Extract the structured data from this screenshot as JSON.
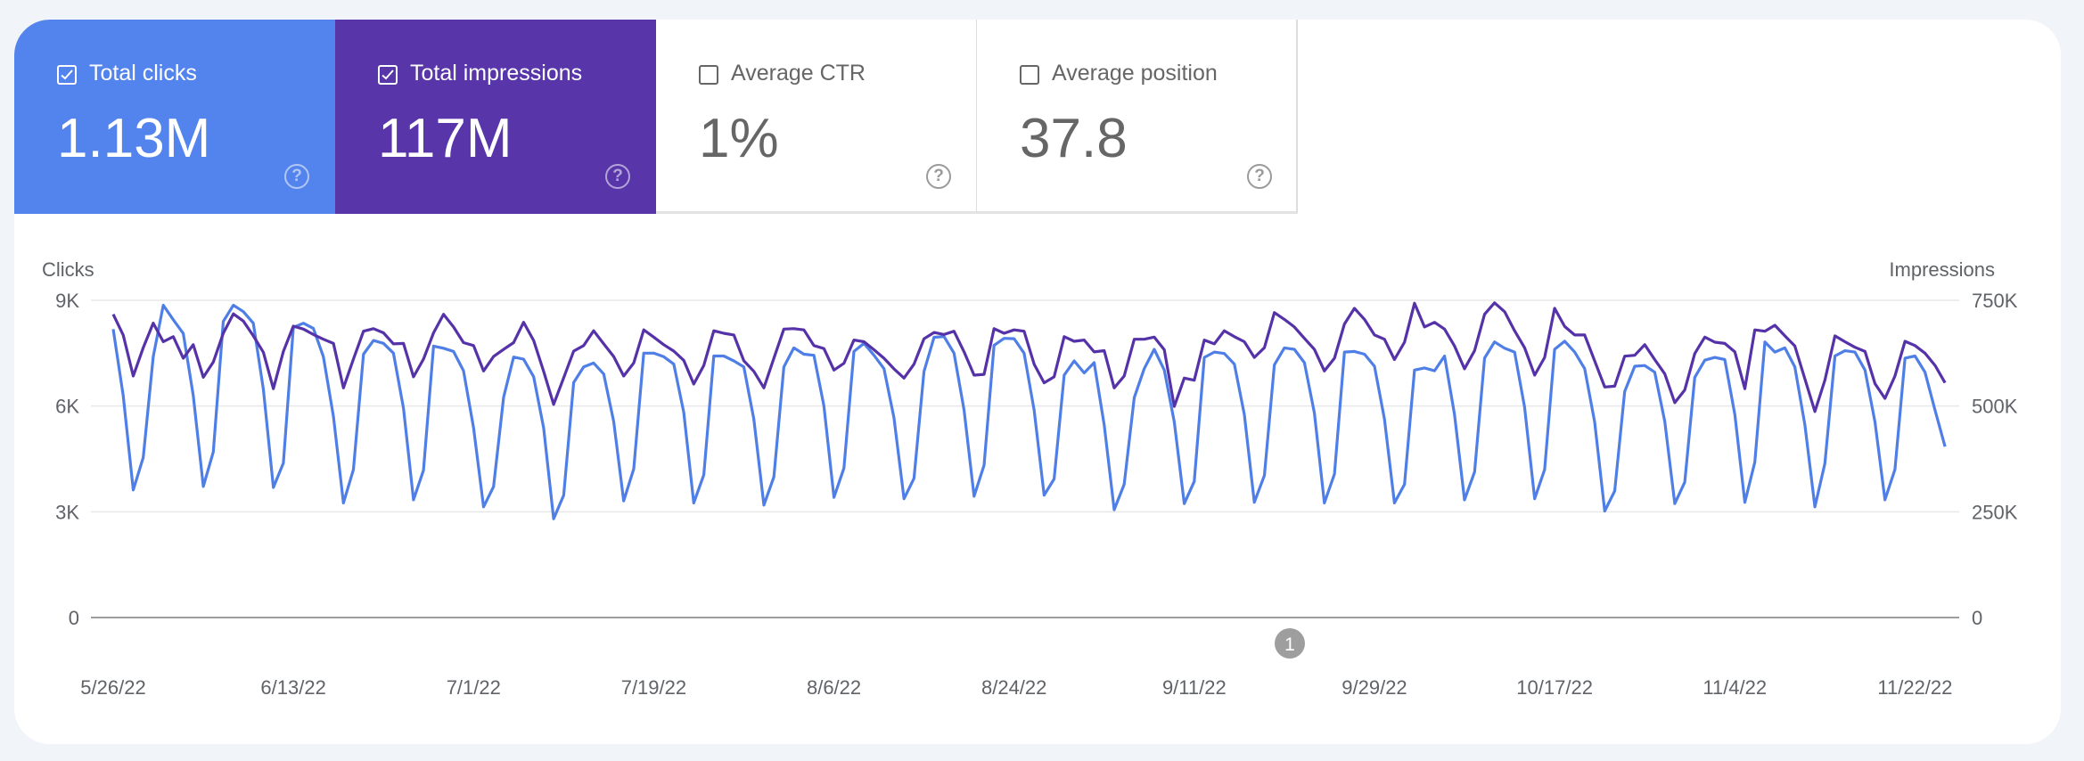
{
  "metrics": [
    {
      "label": "Total clicks",
      "value": "1.13M",
      "checked": true,
      "color": "#5383ec"
    },
    {
      "label": "Total impressions",
      "value": "117M",
      "checked": true,
      "color": "#5835a9"
    },
    {
      "label": "Average CTR",
      "value": "1%",
      "checked": false
    },
    {
      "label": "Average position",
      "value": "37.8",
      "checked": false
    }
  ],
  "annotation_badge": "1",
  "chart_data": {
    "type": "line",
    "x_range": [
      "5/26/22",
      "11/25/22"
    ],
    "x_tick_labels": [
      "5/26/22",
      "6/13/22",
      "7/1/22",
      "7/19/22",
      "8/6/22",
      "8/24/22",
      "9/11/22",
      "9/29/22",
      "10/17/22",
      "11/4/22",
      "11/22/22"
    ],
    "left_axis": {
      "label": "Clicks",
      "ylim": [
        0,
        9000
      ],
      "tick_labels": [
        "0",
        "3K",
        "6K",
        "9K"
      ]
    },
    "right_axis": {
      "label": "Impressions",
      "ylim": [
        0,
        750000
      ],
      "tick_labels": [
        "0",
        "250K",
        "500K",
        "750K"
      ]
    },
    "grid": true,
    "series": [
      {
        "name": "Clicks",
        "axis": "left",
        "color": "#4f7fe6",
        "values": [
          8180,
          6300,
          3620,
          4540,
          7400,
          8860,
          8450,
          8060,
          6300,
          3720,
          4700,
          8400,
          8860,
          8680,
          8350,
          6470,
          3690,
          4380,
          8230,
          8350,
          8200,
          7400,
          5700,
          3250,
          4200,
          7470,
          7860,
          7780,
          7500,
          5930,
          3340,
          4180,
          7700,
          7640,
          7550,
          7000,
          5380,
          3140,
          3710,
          6250,
          7390,
          7330,
          6830,
          5380,
          2800,
          3470,
          6670,
          7110,
          7220,
          6910,
          5560,
          3310,
          4220,
          7500,
          7500,
          7400,
          7190,
          5820,
          3250,
          4050,
          7420,
          7420,
          7280,
          7110,
          5630,
          3190,
          3990,
          7110,
          7650,
          7470,
          7440,
          6010,
          3410,
          4240,
          7550,
          7780,
          7440,
          7060,
          5670,
          3370,
          3950,
          6980,
          7950,
          7970,
          7500,
          5880,
          3440,
          4320,
          7720,
          7920,
          7910,
          7500,
          5880,
          3470,
          3930,
          6880,
          7280,
          6940,
          7230,
          5460,
          3060,
          3780,
          6240,
          7060,
          7610,
          7020,
          5550,
          3230,
          3860,
          7380,
          7530,
          7490,
          7190,
          5760,
          3270,
          4030,
          7170,
          7650,
          7610,
          7230,
          5800,
          3250,
          4070,
          7530,
          7550,
          7470,
          7130,
          5630,
          3250,
          3780,
          7020,
          7080,
          7000,
          7420,
          5760,
          3340,
          4130,
          7360,
          7820,
          7640,
          7530,
          5970,
          3370,
          4200,
          7610,
          7840,
          7530,
          7060,
          5550,
          3020,
          3590,
          6410,
          7130,
          7150,
          6960,
          5560,
          3230,
          3840,
          6810,
          7300,
          7380,
          7320,
          5760,
          3270,
          4410,
          7820,
          7530,
          7650,
          7110,
          5460,
          3140,
          4370,
          7420,
          7570,
          7530,
          7020,
          5550,
          3340,
          4200,
          7360,
          7420,
          6960,
          5880,
          4850
        ]
      },
      {
        "name": "Impressions",
        "axis": "right",
        "color": "#5632a8",
        "values": [
          717000,
          668000,
          571000,
          638000,
          696000,
          652000,
          664000,
          613000,
          645000,
          568000,
          604000,
          672000,
          718000,
          701000,
          666000,
          627000,
          541000,
          629000,
          689000,
          682000,
          669000,
          658000,
          648000,
          543000,
          611000,
          677000,
          683000,
          673000,
          647000,
          648000,
          569000,
          611000,
          673000,
          717000,
          687000,
          650000,
          643000,
          583000,
          617000,
          634000,
          650000,
          698000,
          655000,
          582000,
          504000,
          567000,
          630000,
          643000,
          678000,
          647000,
          617000,
          571000,
          602000,
          680000,
          663000,
          645000,
          630000,
          608000,
          552000,
          596000,
          678000,
          672000,
          668000,
          607000,
          582000,
          543000,
          613000,
          682000,
          683000,
          680000,
          643000,
          636000,
          585000,
          601000,
          656000,
          652000,
          633000,
          613000,
          588000,
          566000,
          599000,
          659000,
          674000,
          669000,
          677000,
          628000,
          573000,
          575000,
          683000,
          672000,
          680000,
          677000,
          599000,
          555000,
          569000,
          664000,
          653000,
          656000,
          628000,
          631000,
          543000,
          571000,
          658000,
          658000,
          663000,
          633000,
          499000,
          566000,
          561000,
          656000,
          647000,
          678000,
          664000,
          652000,
          615000,
          638000,
          721000,
          705000,
          687000,
          660000,
          634000,
          583000,
          613000,
          694000,
          731000,
          705000,
          668000,
          658000,
          610000,
          651000,
          743000,
          687000,
          698000,
          682000,
          642000,
          588000,
          631000,
          717000,
          744000,
          723000,
          678000,
          638000,
          573000,
          615000,
          731000,
          688000,
          668000,
          668000,
          607000,
          545000,
          547000,
          618000,
          620000,
          645000,
          610000,
          576000,
          508000,
          538000,
          624000,
          663000,
          651000,
          648000,
          628000,
          541000,
          680000,
          677000,
          691000,
          666000,
          642000,
          564000,
          487000,
          561000,
          666000,
          652000,
          639000,
          629000,
          553000,
          518000,
          571000,
          653000,
          643000,
          625000,
          596000,
          555000
        ]
      }
    ]
  }
}
